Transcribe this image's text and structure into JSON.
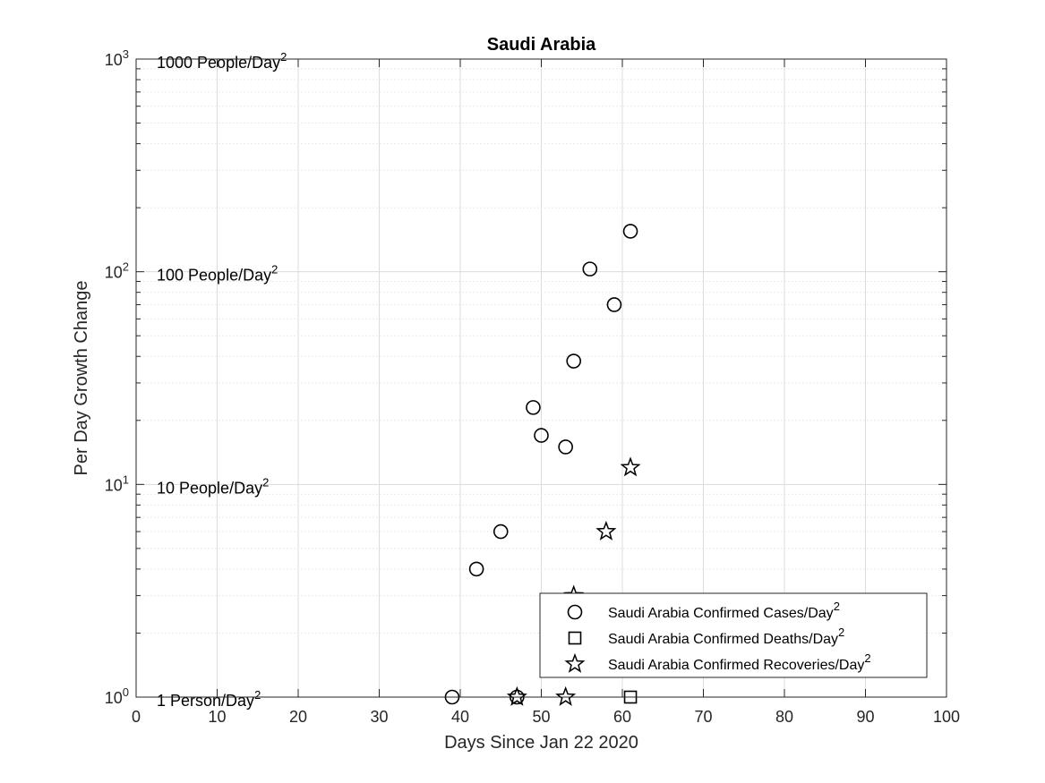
{
  "chart_data": {
    "type": "scatter",
    "title": "Saudi Arabia",
    "xlabel": "Days Since Jan 22 2020",
    "ylabel": "Per Day Growth Change",
    "xlim": [
      0,
      100
    ],
    "ylim": [
      1,
      1000
    ],
    "yscale": "log",
    "grid": true,
    "x_ticks": [
      0,
      10,
      20,
      30,
      40,
      50,
      60,
      70,
      80,
      90,
      100
    ],
    "y_ticks": [
      {
        "value": 1,
        "base": "10",
        "exp": "0"
      },
      {
        "value": 10,
        "base": "10",
        "exp": "1"
      },
      {
        "value": 100,
        "base": "10",
        "exp": "2"
      },
      {
        "value": 1000,
        "base": "10",
        "exp": "3"
      }
    ],
    "annotations": [
      {
        "y": 1,
        "text": "1 Person/Day",
        "sup": "2"
      },
      {
        "y": 10,
        "text": "10 People/Day",
        "sup": "2"
      },
      {
        "y": 100,
        "text": "100 People/Day",
        "sup": "2"
      },
      {
        "y": 1000,
        "text": "1000 People/Day",
        "sup": "2"
      }
    ],
    "legend_position": "bottom-right",
    "series": [
      {
        "name": "Saudi Arabia Confirmed Cases/Day",
        "name_sup": "2",
        "marker": "circle",
        "color": "#000000",
        "points": [
          [
            39,
            1
          ],
          [
            42,
            4
          ],
          [
            45,
            6
          ],
          [
            47,
            1
          ],
          [
            49,
            23
          ],
          [
            50,
            17
          ],
          [
            53,
            15
          ],
          [
            54,
            38
          ],
          [
            56,
            103
          ],
          [
            59,
            70
          ],
          [
            61,
            155
          ]
        ]
      },
      {
        "name": "Saudi Arabia Confirmed Deaths/Day",
        "name_sup": "2",
        "marker": "square",
        "color": "#000000",
        "points": [
          [
            61,
            1
          ]
        ]
      },
      {
        "name": "Saudi Arabia Confirmed Recoveries/Day",
        "name_sup": "2",
        "marker": "star",
        "color": "#000000",
        "points": [
          [
            47,
            1
          ],
          [
            53,
            1
          ],
          [
            54,
            3
          ],
          [
            58,
            6
          ],
          [
            61,
            12
          ]
        ]
      }
    ]
  }
}
